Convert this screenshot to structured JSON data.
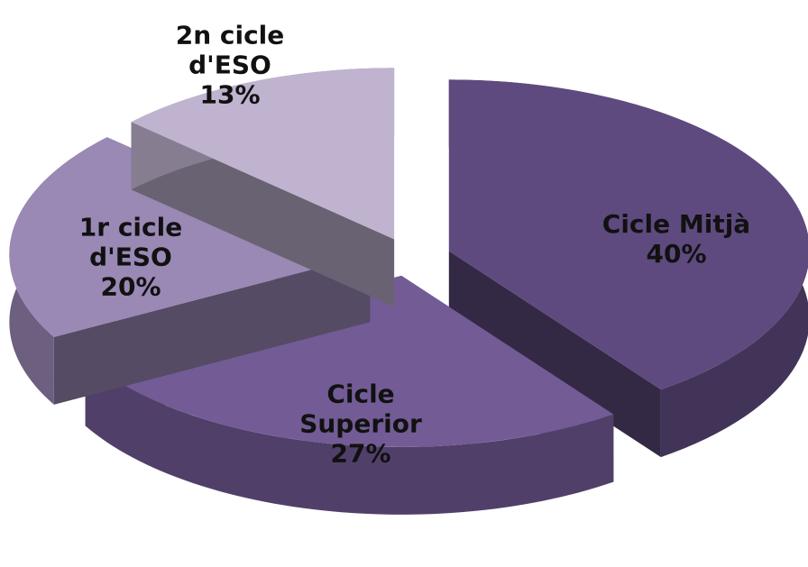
{
  "chart_data": {
    "type": "pie",
    "categories": [
      "Cicle Mitjà",
      "Cicle Superior",
      "1r cicle d'ESO",
      "2n cicle d'ESO"
    ],
    "values": [
      40,
      27,
      20,
      13
    ],
    "value_labels": [
      "40%",
      "27%",
      "20%",
      "13%"
    ],
    "colors": [
      "#5e4a7e",
      "#735b96",
      "#9a88b5",
      "#bfb3cf"
    ],
    "three_d": true,
    "exploded": true
  }
}
